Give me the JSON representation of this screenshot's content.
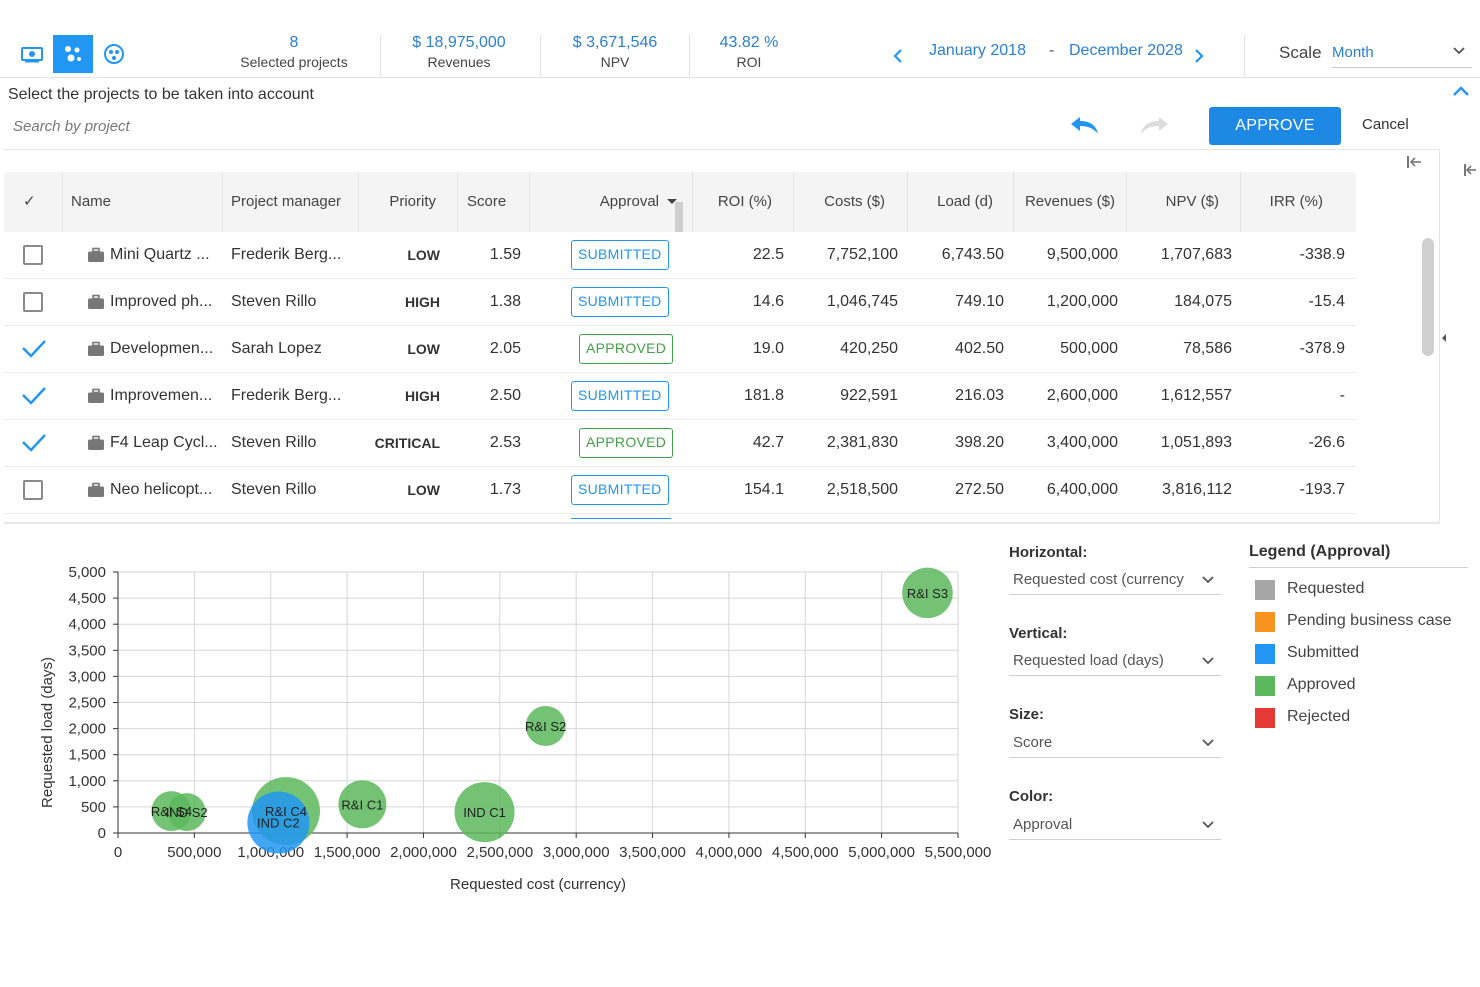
{
  "header": {
    "views": [
      {
        "icon": "money-icon",
        "active": false
      },
      {
        "icon": "scatter-icon",
        "active": true
      },
      {
        "icon": "globe-icon",
        "active": false
      }
    ],
    "kpis": [
      {
        "value": "8",
        "label": "Selected projects"
      },
      {
        "value": "$ 18,975,000",
        "label": "Revenues"
      },
      {
        "value": "$ 3,671,546",
        "label": "NPV"
      },
      {
        "value": "43.82 %",
        "label": "ROI"
      }
    ],
    "date_from": "January 2018",
    "date_sep": "-",
    "date_to": "December 2028",
    "scale_label": "Scale",
    "scale_value": "Month"
  },
  "toolbar": {
    "title": "Select the projects to be taken into account",
    "search_placeholder": "Search by project",
    "approve_label": "APPROVE",
    "cancel_label": "Cancel"
  },
  "table": {
    "columns": {
      "check": "✓",
      "name": "Name",
      "manager": "Project manager",
      "priority": "Priority",
      "score": "Score",
      "approval": "Approval",
      "roi": "ROI (%)",
      "costs": "Costs ($)",
      "load": "Load (d)",
      "revenues": "Revenues ($)",
      "npv": "NPV ($)",
      "irr": "IRR (%)"
    },
    "rows": [
      {
        "checked": false,
        "name": "Mini Quartz ...",
        "manager": "Frederik Berg...",
        "priority": "LOW",
        "score": "1.59",
        "approval": "SUBMITTED",
        "roi": "22.5",
        "costs": "7,752,100",
        "load": "6,743.50",
        "revenues": "9,500,000",
        "npv": "1,707,683",
        "irr": "-338.9"
      },
      {
        "checked": false,
        "name": "Improved ph...",
        "manager": "Steven Rillo",
        "priority": "HIGH",
        "score": "1.38",
        "approval": "SUBMITTED",
        "roi": "14.6",
        "costs": "1,046,745",
        "load": "749.10",
        "revenues": "1,200,000",
        "npv": "184,075",
        "irr": "-15.4"
      },
      {
        "checked": true,
        "name": "Developmen...",
        "manager": "Sarah Lopez",
        "priority": "LOW",
        "score": "2.05",
        "approval": "APPROVED",
        "roi": "19.0",
        "costs": "420,250",
        "load": "402.50",
        "revenues": "500,000",
        "npv": "78,586",
        "irr": "-378.9"
      },
      {
        "checked": true,
        "name": "Improvemen...",
        "manager": "Frederik Berg...",
        "priority": "HIGH",
        "score": "2.50",
        "approval": "SUBMITTED",
        "roi": "181.8",
        "costs": "922,591",
        "load": "216.03",
        "revenues": "2,600,000",
        "npv": "1,612,557",
        "irr": "-"
      },
      {
        "checked": true,
        "name": "F4 Leap Cycl...",
        "manager": "Steven Rillo",
        "priority": "CRITICAL",
        "score": "2.53",
        "approval": "APPROVED",
        "roi": "42.7",
        "costs": "2,381,830",
        "load": "398.20",
        "revenues": "3,400,000",
        "npv": "1,051,893",
        "irr": "-26.6"
      },
      {
        "checked": false,
        "name": "Neo helicopt...",
        "manager": "Steven Rillo",
        "priority": "LOW",
        "score": "1.73",
        "approval": "SUBMITTED",
        "roi": "154.1",
        "costs": "2,518,500",
        "load": "272.50",
        "revenues": "6,400,000",
        "npv": "3,816,112",
        "irr": "-193.7"
      }
    ]
  },
  "controls": {
    "horizontal_label": "Horizontal:",
    "horizontal_value": "Requested cost (currency",
    "vertical_label": "Vertical:",
    "vertical_value": "Requested load (days)",
    "size_label": "Size:",
    "size_value": "Score",
    "color_label": "Color:",
    "color_value": "Approval"
  },
  "legend": {
    "title": "Legend (Approval)",
    "items": [
      {
        "label": "Requested",
        "color": "#a6a6a6"
      },
      {
        "label": "Pending business case",
        "color": "#f7931e"
      },
      {
        "label": "Submitted",
        "color": "#2196f3"
      },
      {
        "label": "Approved",
        "color": "#5cb85c"
      },
      {
        "label": "Rejected",
        "color": "#e53935"
      }
    ]
  },
  "chart_data": {
    "type": "scatter",
    "title": "",
    "xlabel": "Requested cost (currency)",
    "ylabel": "Requested load (days)",
    "xlim": [
      0,
      5500000
    ],
    "ylim": [
      0,
      5000
    ],
    "xticks": [
      0,
      500000,
      1000000,
      1500000,
      2000000,
      2500000,
      3000000,
      3500000,
      4000000,
      4500000,
      5000000,
      5500000
    ],
    "xtick_labels": [
      "0",
      "500,000",
      "1,000,000",
      "1,500,000",
      "2,000,000",
      "2,500,000",
      "3,000,000",
      "3,500,000",
      "4,000,000",
      "4,500,000",
      "5,000,000",
      "5,500,000"
    ],
    "yticks": [
      0,
      500,
      1000,
      1500,
      2000,
      2500,
      3000,
      3500,
      4000,
      4500,
      5000
    ],
    "ytick_labels": [
      "0",
      "500",
      "1,000",
      "1,500",
      "2,000",
      "2,500",
      "3,000",
      "3,500",
      "4,000",
      "4,500",
      "5,000"
    ],
    "grid": true,
    "points": [
      {
        "label": "R&I S3",
        "x": 5300000,
        "y": 4600,
        "size": 2.53,
        "approval": "Approved"
      },
      {
        "label": "R&I S2",
        "x": 2800000,
        "y": 2050,
        "size": 2.0,
        "approval": "Approved"
      },
      {
        "label": "R&I S4",
        "x": 350000,
        "y": 420,
        "size": 2.0,
        "approval": "Approved"
      },
      {
        "label": "IND S2",
        "x": 450000,
        "y": 400,
        "size": 1.9,
        "approval": "Approved"
      },
      {
        "label": "R&I C4",
        "x": 1100000,
        "y": 420,
        "size": 3.4,
        "approval": "Approved"
      },
      {
        "label": "IND C2",
        "x": 1050000,
        "y": 200,
        "size": 3.1,
        "approval": "Submitted"
      },
      {
        "label": "R&I C1",
        "x": 1600000,
        "y": 550,
        "size": 2.4,
        "approval": "Approved"
      },
      {
        "label": "IND C1",
        "x": 2400000,
        "y": 400,
        "size": 3.0,
        "approval": "Approved"
      }
    ],
    "colors": {
      "Approved": "#5cb85c",
      "Submitted": "#2196f3"
    }
  }
}
